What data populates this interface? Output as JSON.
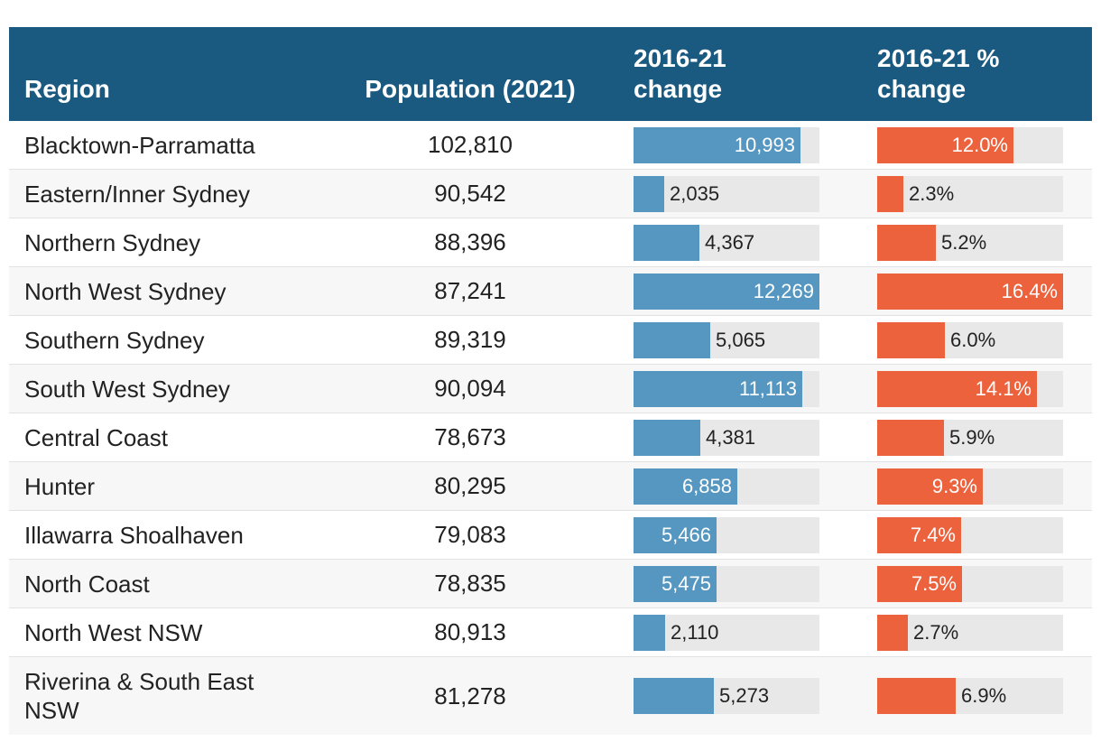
{
  "chart_data": {
    "type": "table",
    "columns": [
      "Region",
      "Population (2021)",
      "2016-21 change",
      "2016-21 % change"
    ],
    "bar_colors": {
      "change": "#5597c0",
      "pct_change": "#ec623d"
    },
    "header_color": "#1b5a80",
    "rows": [
      {
        "region": "Blacktown-Parramatta",
        "population": "102,810",
        "change": 10993,
        "change_label": "10,993",
        "pct": 12.0,
        "pct_label": "12.0%"
      },
      {
        "region": "Eastern/Inner Sydney",
        "population": "90,542",
        "change": 2035,
        "change_label": "2,035",
        "pct": 2.3,
        "pct_label": "2.3%"
      },
      {
        "region": "Northern Sydney",
        "population": "88,396",
        "change": 4367,
        "change_label": "4,367",
        "pct": 5.2,
        "pct_label": "5.2%"
      },
      {
        "region": "North West Sydney",
        "population": "87,241",
        "change": 12269,
        "change_label": "12,269",
        "pct": 16.4,
        "pct_label": "16.4%"
      },
      {
        "region": "Southern Sydney",
        "population": "89,319",
        "change": 5065,
        "change_label": "5,065",
        "pct": 6.0,
        "pct_label": "6.0%"
      },
      {
        "region": "South West Sydney",
        "population": "90,094",
        "change": 11113,
        "change_label": "11,113",
        "pct": 14.1,
        "pct_label": "14.1%"
      },
      {
        "region": "Central Coast",
        "population": "78,673",
        "change": 4381,
        "change_label": "4,381",
        "pct": 5.9,
        "pct_label": "5.9%"
      },
      {
        "region": "Hunter",
        "population": "80,295",
        "change": 6858,
        "change_label": "6,858",
        "pct": 9.3,
        "pct_label": "9.3%"
      },
      {
        "region": "Illawarra Shoalhaven",
        "population": "79,083",
        "change": 5466,
        "change_label": "5,466",
        "pct": 7.4,
        "pct_label": "7.4%"
      },
      {
        "region": "North Coast",
        "population": "78,835",
        "change": 5475,
        "change_label": "5,475",
        "pct": 7.5,
        "pct_label": "7.5%"
      },
      {
        "region": "North West NSW",
        "population": "80,913",
        "change": 2110,
        "change_label": "2,110",
        "pct": 2.7,
        "pct_label": "2.7%"
      },
      {
        "region": "Riverina & South East NSW",
        "population": "81,278",
        "change": 5273,
        "change_label": "5,273",
        "pct": 6.9,
        "pct_label": "6.9%"
      }
    ],
    "change_max": 12269,
    "pct_max": 16.4
  }
}
